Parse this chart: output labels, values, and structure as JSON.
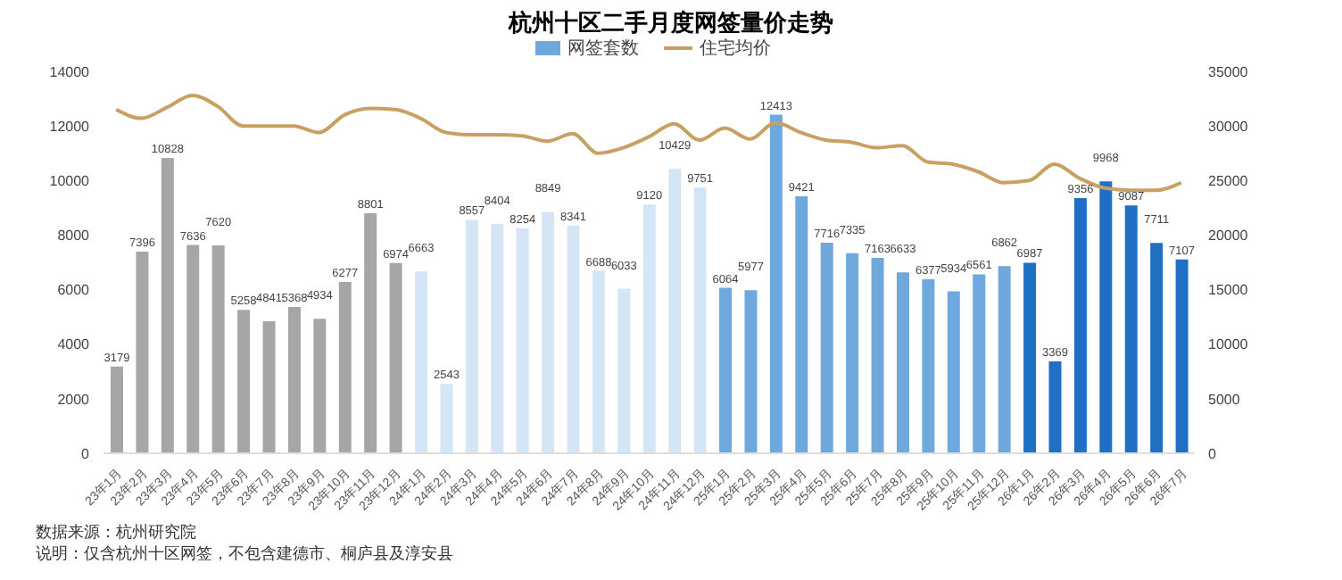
{
  "chart_data": {
    "type": "bar",
    "title": "杭州十区二手月度网签量价走势",
    "categories": [
      "23年1月",
      "23年2月",
      "23年3月",
      "23年4月",
      "23年5月",
      "23年6月",
      "23年7月",
      "23年8月",
      "23年9月",
      "23年10月",
      "23年11月",
      "23年12月",
      "24年1月",
      "24年2月",
      "24年3月",
      "24年4月",
      "24年5月",
      "24年6月",
      "24年7月",
      "24年8月",
      "24年9月",
      "24年10月",
      "24年11月",
      "24年12月",
      "25年1月",
      "25年2月",
      "25年3月",
      "25年4月",
      "25年5月",
      "25年6月",
      "25年7月",
      "25年8月",
      "25年9月",
      "25年10月",
      "25年11月",
      "25年12月",
      "26年1月",
      "26年2月",
      "26年3月",
      "26年4月",
      "26年5月",
      "26年6月",
      "26年7月"
    ],
    "series": [
      {
        "name": "网签套数",
        "color": "#6fa8dc",
        "colors": [
          "#a6a6a6",
          "#a6a6a6",
          "#a6a6a6",
          "#a6a6a6",
          "#a6a6a6",
          "#a6a6a6",
          "#a6a6a6",
          "#a6a6a6",
          "#a6a6a6",
          "#a6a6a6",
          "#a6a6a6",
          "#a6a6a6",
          "#d4e6f6",
          "#d4e6f6",
          "#d4e6f6",
          "#d4e6f6",
          "#d4e6f6",
          "#d4e6f6",
          "#d4e6f6",
          "#d4e6f6",
          "#d4e6f6",
          "#d4e6f6",
          "#d4e6f6",
          "#d4e6f6",
          "#6fa8dc",
          "#6fa8dc",
          "#6fa8dc",
          "#6fa8dc",
          "#6fa8dc",
          "#6fa8dc",
          "#6fa8dc",
          "#6fa8dc",
          "#6fa8dc",
          "#6fa8dc",
          "#6fa8dc",
          "#6fa8dc",
          "#1f6fc5",
          "#1f6fc5",
          "#1f6fc5",
          "#1f6fc5",
          "#1f6fc5",
          "#1f6fc5",
          "#1f6fc5"
        ],
        "values": [
          3179,
          7396,
          10828,
          7636,
          7620,
          5258,
          4841,
          5368,
          4934,
          6277,
          8801,
          6974,
          6663,
          2543,
          8557,
          8404,
          8254,
          8849,
          8341,
          6688,
          6033,
          9120,
          10429,
          9751,
          6064,
          5977,
          12413,
          9421,
          7716,
          7335,
          7163,
          6633,
          6377,
          5934,
          6561,
          6862,
          6987,
          3369,
          9356,
          9968,
          9087,
          7711,
          7107
        ],
        "value_labels": [
          "3179",
          "7396",
          "10828",
          "7636",
          "7620",
          "5258",
          "4841",
          "5368",
          "4934",
          "6277",
          "8801",
          "6974",
          "6663",
          "2543",
          "8557",
          "8404",
          "8254",
          "8849",
          "8341",
          "6688",
          "6033",
          "9120",
          "10429",
          "9751",
          "6064",
          "5977",
          "12413",
          "9421",
          "7716",
          "7335",
          "7163",
          "6633",
          "6377",
          "5934",
          "6561",
          "6862",
          "6987",
          "3369",
          "9356",
          "9968",
          "9087",
          "7711",
          "7107"
        ]
      },
      {
        "name": "住宅均价",
        "type": "line",
        "axis": "y2",
        "color": "#c9a063",
        "values": [
          31500,
          30700,
          31700,
          32800,
          31800,
          30000,
          30000,
          30000,
          29400,
          31000,
          31600,
          31500,
          30700,
          29400,
          29200,
          29200,
          29100,
          28600,
          29300,
          27500,
          28000,
          29000,
          30200,
          28700,
          29800,
          28800,
          30300,
          29400,
          28700,
          28500,
          28000,
          28200,
          26700,
          26500,
          25800,
          24800,
          25000,
          26500,
          25200,
          24300,
          24100,
          24100,
          24800
        ]
      }
    ],
    "ylim": [
      0,
      14000
    ],
    "yticks": [
      0,
      2000,
      4000,
      6000,
      8000,
      10000,
      12000,
      14000
    ],
    "y2lim": [
      0,
      35000
    ],
    "y2ticks": [
      0,
      5000,
      10000,
      15000,
      20000,
      25000,
      30000,
      35000
    ],
    "grid": false,
    "legend": "top",
    "annotations": [
      "数据来源：杭州研究院",
      "说明：仅含杭州十区网签，不包含建德市、桐庐县及淳安县"
    ]
  }
}
